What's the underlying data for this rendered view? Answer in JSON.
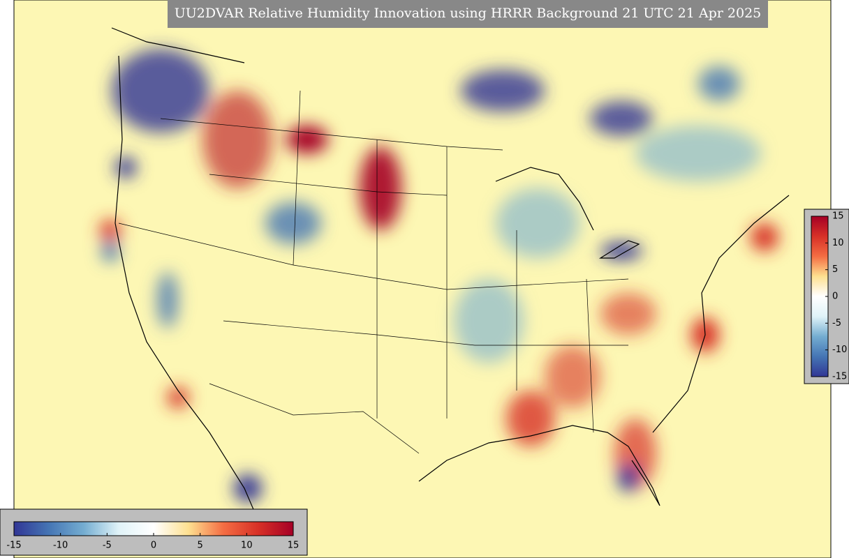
{
  "title": "UU2DVAR Relative Humidity Innovation using HRRR Background 21 UTC 21 Apr 2025",
  "colormap": [
    "#313695",
    "#4575b4",
    "#74add1",
    "#e0f3f8",
    "#ffffff",
    "#fee090",
    "#f46d43",
    "#d73027",
    "#a50026"
  ],
  "colorbars": [
    {
      "orientation": "horizontal",
      "lim": [
        -15,
        15
      ],
      "ticks": [
        -15,
        -10,
        -5,
        0,
        5,
        10,
        15
      ]
    },
    {
      "orientation": "vertical",
      "lim": [
        -15,
        15
      ],
      "ticks": [
        -15,
        -10,
        -5,
        0,
        5,
        10,
        15
      ]
    }
  ]
}
